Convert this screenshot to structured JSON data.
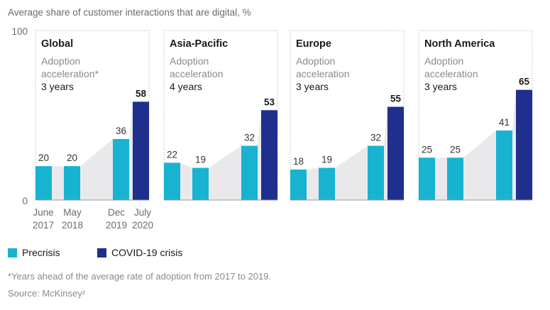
{
  "header": {
    "subtitle": "Average share of customer interactions that are digital, %"
  },
  "footer": {
    "footnote": "*Years ahead of the average rate of adoption from 2017 to 2019.",
    "source": "Source: McKinsey²"
  },
  "colors": {
    "precrisis": "#17b3d1",
    "covid": "#1e2f8e",
    "area": "#e9e9ec",
    "border": "#b9b9b9"
  },
  "chart_data": {
    "type": "bar",
    "ylim": [
      0,
      100
    ],
    "yticks": [
      "0",
      "100"
    ],
    "x_tick_labels": [
      [
        "June",
        "2017"
      ],
      [
        "May",
        "2018"
      ],
      [
        "Dec",
        "2019"
      ],
      [
        "July",
        "2020"
      ]
    ],
    "legend": [
      {
        "name": "Precrisis",
        "color": "#17b3d1"
      },
      {
        "name": "COVID-19 crisis",
        "color": "#1e2f8e"
      }
    ],
    "panels": [
      {
        "region": "Global",
        "accel_label": [
          "Adoption",
          "acceleration*"
        ],
        "accel_years": "3 years",
        "values": [
          20,
          20,
          36,
          58
        ]
      },
      {
        "region": "Asia-Pacific",
        "accel_label": [
          "Adoption",
          "acceleration"
        ],
        "accel_years": "4 years",
        "values": [
          22,
          19,
          32,
          53
        ]
      },
      {
        "region": "Europe",
        "accel_label": [
          "Adoption",
          "acceleration"
        ],
        "accel_years": "3 years",
        "values": [
          18,
          19,
          32,
          55
        ]
      },
      {
        "region": "North America",
        "accel_label": [
          "Adoption",
          "acceleration"
        ],
        "accel_years": "3 years",
        "values": [
          25,
          25,
          41,
          65
        ]
      }
    ]
  }
}
